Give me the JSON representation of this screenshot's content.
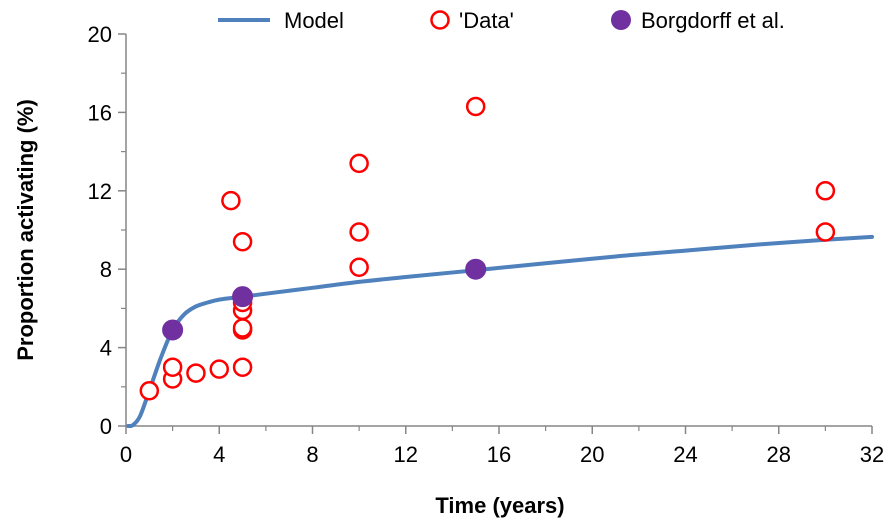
{
  "chart_data": {
    "type": "scatter",
    "title": "",
    "xlabel": "Time (years)",
    "ylabel": "Proportion activating  (%)",
    "xlim": [
      0,
      32
    ],
    "ylim": [
      0,
      20
    ],
    "x_ticks": [
      "0",
      "4",
      "8",
      "12",
      "16",
      "20",
      "24",
      "28",
      "32"
    ],
    "y_ticks": [
      "0",
      "4",
      "8",
      "12",
      "16",
      "20"
    ],
    "grid": false,
    "legend_position": "top",
    "series": [
      {
        "name": "Model",
        "kind": "line",
        "color": "#4F81BD",
        "points": [
          [
            0.1,
            0
          ],
          [
            0.3,
            0.05
          ],
          [
            0.6,
            0.5
          ],
          [
            1.0,
            1.8
          ],
          [
            1.5,
            3.5
          ],
          [
            2.0,
            4.9
          ],
          [
            2.5,
            5.7
          ],
          [
            3.0,
            6.1
          ],
          [
            3.5,
            6.3
          ],
          [
            4.0,
            6.45
          ],
          [
            5.0,
            6.6
          ],
          [
            6.0,
            6.75
          ],
          [
            8.0,
            7.05
          ],
          [
            10.0,
            7.35
          ],
          [
            12.0,
            7.6
          ],
          [
            15.0,
            7.95
          ],
          [
            18.0,
            8.3
          ],
          [
            21.0,
            8.65
          ],
          [
            24.0,
            8.95
          ],
          [
            27.0,
            9.25
          ],
          [
            30.0,
            9.5
          ],
          [
            32.0,
            9.65
          ]
        ]
      },
      {
        "name": "'Data'",
        "kind": "scatter-hollow",
        "color": "#FF0000",
        "points": [
          [
            1,
            1.8
          ],
          [
            2,
            2.4
          ],
          [
            2,
            3.0
          ],
          [
            3,
            2.7
          ],
          [
            4,
            2.9
          ],
          [
            4.5,
            11.5
          ],
          [
            5,
            3.0
          ],
          [
            5,
            4.9
          ],
          [
            5,
            5.0
          ],
          [
            5,
            5.9
          ],
          [
            5,
            6.3
          ],
          [
            5,
            9.4
          ],
          [
            10,
            8.1
          ],
          [
            10,
            9.9
          ],
          [
            10,
            13.4
          ],
          [
            15,
            16.3
          ],
          [
            30,
            9.9
          ],
          [
            30,
            12.0
          ]
        ]
      },
      {
        "name": "Borgdorff et al.",
        "kind": "scatter-filled",
        "color": "#7030A0",
        "points": [
          [
            2,
            4.9
          ],
          [
            5,
            6.6
          ],
          [
            15,
            8.0
          ]
        ]
      }
    ]
  }
}
